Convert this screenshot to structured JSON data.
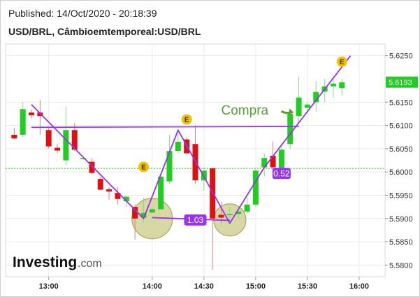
{
  "header": {
    "published": "Published: 14/Oct/2020 - 20:18:39",
    "symbol": "USD/BRL, Câmbioemtemporeal:USD/BRL"
  },
  "brand": {
    "name": "Investing",
    "suffix": ".com"
  },
  "colors": {
    "up": "#22cc22",
    "down": "#dd1111",
    "pattern": "#9933ee",
    "annotation_text": "#5a9e3a",
    "price_tag": "#22cc22",
    "circle_fill": "#c9c98a",
    "event_badge": "#f2c200"
  },
  "chart_data": {
    "type": "candlestick",
    "x_ticks": [
      "13:00",
      "14:00",
      "14:30",
      "15:00",
      "15:30",
      "16:00"
    ],
    "y_ticks": [
      "5.6250",
      "5.6150",
      "5.6100",
      "5.6050",
      "5.6000",
      "5.5950",
      "5.5900",
      "5.5850",
      "5.5800"
    ],
    "y_range": [
      5.5775,
      5.6275
    ],
    "current_price": "5.6193",
    "reference_line": 5.6008,
    "candles": [
      {
        "t": "12:40",
        "o": 5.608,
        "h": 5.6095,
        "l": 5.607,
        "c": 5.6072
      },
      {
        "t": "12:45",
        "o": 5.608,
        "h": 5.615,
        "l": 5.6075,
        "c": 5.6135
      },
      {
        "t": "12:50",
        "o": 5.6128,
        "h": 5.6135,
        "l": 5.6115,
        "c": 5.6122
      },
      {
        "t": "12:55",
        "o": 5.6128,
        "h": 5.6155,
        "l": 5.608,
        "c": 5.612
      },
      {
        "t": "13:00",
        "o": 5.609,
        "h": 5.6095,
        "l": 5.605,
        "c": 5.6055
      },
      {
        "t": "13:05",
        "o": 5.6052,
        "h": 5.606,
        "l": 5.604,
        "c": 5.6046
      },
      {
        "t": "13:10",
        "o": 5.6025,
        "h": 5.614,
        "l": 5.6015,
        "c": 5.609
      },
      {
        "t": "13:15",
        "o": 5.609,
        "h": 5.6105,
        "l": 5.6045,
        "c": 5.6048
      },
      {
        "t": "13:20",
        "o": 5.603,
        "h": 5.6033,
        "l": 5.6027,
        "c": 5.603
      },
      {
        "t": "13:25",
        "o": 5.6022,
        "h": 5.603,
        "l": 5.5995,
        "c": 5.5998
      },
      {
        "t": "13:30",
        "o": 5.5985,
        "h": 5.599,
        "l": 5.596,
        "c": 5.5962
      },
      {
        "t": "13:35",
        "o": 5.5963,
        "h": 5.5968,
        "l": 5.594,
        "c": 5.5958
      },
      {
        "t": "13:40",
        "o": 5.5955,
        "h": 5.5968,
        "l": 5.593,
        "c": 5.5942
      },
      {
        "t": "13:45",
        "o": 5.5937,
        "h": 5.595,
        "l": 5.5925,
        "c": 5.5947
      },
      {
        "t": "13:50",
        "o": 5.5925,
        "h": 5.593,
        "l": 5.5855,
        "c": 5.59
      },
      {
        "t": "13:55",
        "o": 5.5902,
        "h": 5.5945,
        "l": 5.589,
        "c": 5.5912
      },
      {
        "t": "14:00",
        "o": 5.5913,
        "h": 5.5925,
        "l": 5.591,
        "c": 5.592
      },
      {
        "t": "14:05",
        "o": 5.592,
        "h": 5.5995,
        "l": 5.592,
        "c": 5.599
      },
      {
        "t": "14:10",
        "o": 5.598,
        "h": 5.608,
        "l": 5.5975,
        "c": 5.6045
      },
      {
        "t": "14:15",
        "o": 5.6045,
        "h": 5.609,
        "l": 5.604,
        "c": 5.6065
      },
      {
        "t": "14:20",
        "o": 5.607,
        "h": 5.6075,
        "l": 5.604,
        "c": 5.604
      },
      {
        "t": "14:25",
        "o": 5.606,
        "h": 5.61,
        "l": 5.5975,
        "c": 5.5982
      },
      {
        "t": "14:30",
        "o": 5.5982,
        "h": 5.601,
        "l": 5.596,
        "c": 5.6003
      },
      {
        "t": "14:35",
        "o": 5.6008,
        "h": 5.601,
        "l": 5.579,
        "c": 5.59
      },
      {
        "t": "14:40",
        "o": 5.5908,
        "h": 5.5935,
        "l": 5.589,
        "c": 5.5902
      },
      {
        "t": "14:45",
        "o": 5.591,
        "h": 5.5925,
        "l": 5.59,
        "c": 5.591
      },
      {
        "t": "14:50",
        "o": 5.591,
        "h": 5.5925,
        "l": 5.59,
        "c": 5.5915
      },
      {
        "t": "14:55",
        "o": 5.5915,
        "h": 5.5945,
        "l": 5.591,
        "c": 5.593
      },
      {
        "t": "15:00",
        "o": 5.593,
        "h": 5.601,
        "l": 5.5925,
        "c": 5.6003
      },
      {
        "t": "15:05",
        "o": 5.601,
        "h": 5.604,
        "l": 5.599,
        "c": 5.603
      },
      {
        "t": "15:10",
        "o": 5.6035,
        "h": 5.6065,
        "l": 5.6005,
        "c": 5.601
      },
      {
        "t": "15:15",
        "o": 5.6003,
        "h": 5.6055,
        "l": 5.5985,
        "c": 5.6048
      },
      {
        "t": "15:20",
        "o": 5.606,
        "h": 5.6135,
        "l": 5.605,
        "c": 5.6125
      },
      {
        "t": "15:25",
        "o": 5.612,
        "h": 5.6205,
        "l": 5.6105,
        "c": 5.616
      },
      {
        "t": "15:30",
        "o": 5.6138,
        "h": 5.615,
        "l": 5.6125,
        "c": 5.6145
      },
      {
        "t": "15:35",
        "o": 5.615,
        "h": 5.6195,
        "l": 5.613,
        "c": 5.6172
      },
      {
        "t": "15:40",
        "o": 5.6173,
        "h": 5.62,
        "l": 5.615,
        "c": 5.6184
      },
      {
        "t": "15:45",
        "o": 5.6184,
        "h": 5.62,
        "l": 5.616,
        "c": 5.619
      },
      {
        "t": "15:50",
        "o": 5.618,
        "h": 5.62,
        "l": 5.6165,
        "c": 5.6193
      }
    ],
    "pattern_lines": [
      {
        "name": "neckline",
        "points": [
          [
            "12:50",
            5.6096
          ],
          [
            "15:25",
            5.6098
          ]
        ]
      },
      {
        "name": "double-bottom-path",
        "points": [
          [
            "12:50",
            5.6145
          ],
          [
            "13:55",
            5.59
          ],
          [
            "14:15",
            5.609
          ],
          [
            "14:45",
            5.589
          ],
          [
            "15:05",
            5.601
          ],
          [
            "15:55",
            5.625
          ]
        ]
      },
      {
        "name": "bottoms-link",
        "points": [
          [
            "14:00",
            5.5902
          ],
          [
            "14:45",
            5.5896
          ]
        ]
      }
    ],
    "highlighted_bottoms": [
      {
        "t": "14:00",
        "price": 5.59
      },
      {
        "t": "14:45",
        "price": 5.5897
      }
    ],
    "labels": [
      {
        "name": "ratio-bottoms",
        "text": "1.03",
        "t": "14:25",
        "price": 5.5897
      },
      {
        "name": "ratio-right",
        "text": "0.52",
        "t": "15:15",
        "price": 5.5997
      },
      {
        "name": "buy-annotation",
        "text": "Compra",
        "t": "14:40",
        "price": 5.6123
      }
    ],
    "event_markers": [
      {
        "text": "E",
        "t": "13:55",
        "price": 5.6011
      },
      {
        "text": "E",
        "t": "14:20",
        "price": 5.6113
      },
      {
        "text": "E",
        "t": "15:50",
        "price": 5.6237
      }
    ]
  }
}
